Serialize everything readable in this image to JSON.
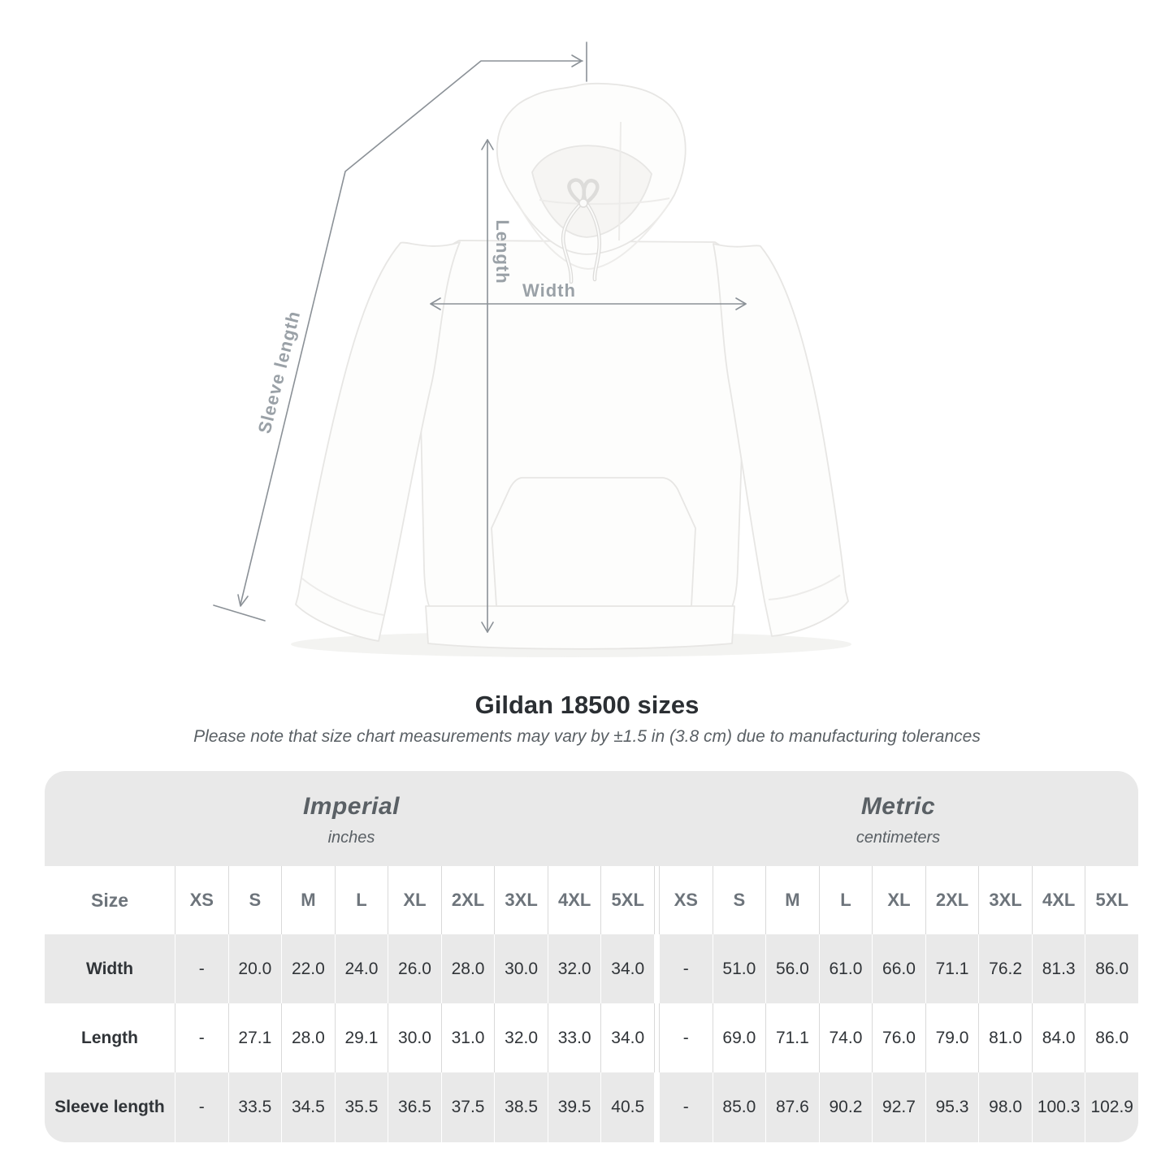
{
  "theme": {
    "background": "#ffffff",
    "stripe": "#e9e9e9",
    "separator": "#d9d9d9",
    "arrow": "#8b9197",
    "dim_label": "#9aa1a7",
    "heading": "#2b2f33",
    "muted_text": "#5a6065",
    "table_label": "#6d747b",
    "value_text": "#303438"
  },
  "diagram": {
    "labels": {
      "length": "Length",
      "width": "Width",
      "sleeve": "Sleeve length"
    }
  },
  "title": "Gildan 18500 sizes",
  "note": "Please note that size chart measurements may vary by ±1.5 in (3.8 cm) due to manufacturing tolerances",
  "table": {
    "size_header": "Size",
    "sizes": [
      "XS",
      "S",
      "M",
      "L",
      "XL",
      "2XL",
      "3XL",
      "4XL",
      "5XL"
    ],
    "sections": [
      {
        "label": "Imperial",
        "sublabel": "inches"
      },
      {
        "label": "Metric",
        "sublabel": "centimeters"
      }
    ],
    "rows": [
      {
        "label": "Width",
        "imperial": [
          "-",
          "20.0",
          "22.0",
          "24.0",
          "26.0",
          "28.0",
          "30.0",
          "32.0",
          "34.0"
        ],
        "metric": [
          "-",
          "51.0",
          "56.0",
          "61.0",
          "66.0",
          "71.1",
          "76.2",
          "81.3",
          "86.0"
        ]
      },
      {
        "label": "Length",
        "imperial": [
          "-",
          "27.1",
          "28.0",
          "29.1",
          "30.0",
          "31.0",
          "32.0",
          "33.0",
          "34.0"
        ],
        "metric": [
          "-",
          "69.0",
          "71.1",
          "74.0",
          "76.0",
          "79.0",
          "81.0",
          "84.0",
          "86.0"
        ]
      },
      {
        "label": "Sleeve length",
        "imperial": [
          "-",
          "33.5",
          "34.5",
          "35.5",
          "36.5",
          "37.5",
          "38.5",
          "39.5",
          "40.5"
        ],
        "metric": [
          "-",
          "85.0",
          "87.6",
          "90.2",
          "92.7",
          "95.3",
          "98.0",
          "100.3",
          "102.9"
        ]
      }
    ]
  }
}
